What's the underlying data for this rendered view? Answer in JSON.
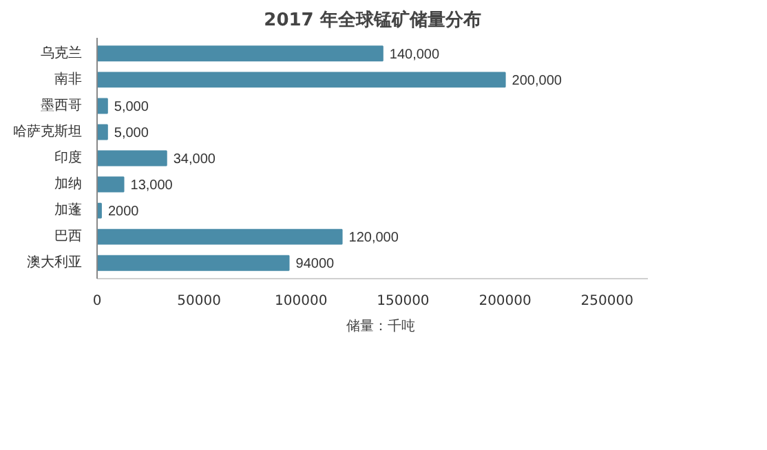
{
  "chart_data": {
    "type": "bar",
    "orientation": "horizontal",
    "title": "2017 年全球锰矿储量分布",
    "categories": [
      "乌克兰",
      "南非",
      "墨西哥",
      "哈萨克斯坦",
      "印度",
      "加纳",
      "加蓬",
      "巴西",
      "澳大利亚"
    ],
    "series": [
      {
        "name": "储量：千吨",
        "color": "#4a8ca8",
        "values": [
          140000,
          200000,
          5000,
          5000,
          34000,
          13000,
          2000,
          120000,
          94000
        ],
        "value_labels": [
          "140,000",
          "200,000",
          "5,000",
          "5,000",
          "34,000",
          "13,000",
          "2000",
          "120,000",
          "94000"
        ]
      }
    ],
    "xlim": [
      0,
      270000
    ],
    "xticks": [
      0,
      50000,
      100000,
      150000,
      200000,
      250000
    ],
    "grid": false,
    "legend": "bottom"
  }
}
